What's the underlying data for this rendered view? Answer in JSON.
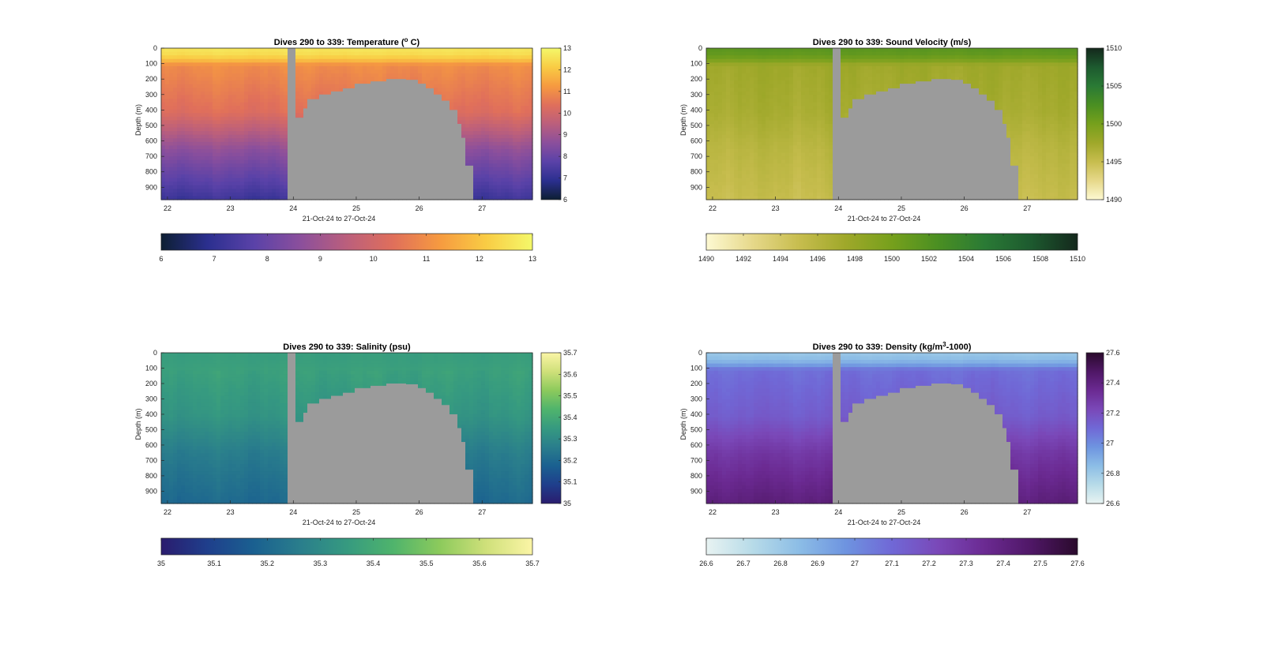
{
  "figure": {
    "xlabel": "21-Oct-24 to 27-Oct-24",
    "ylabel": "Depth (m)",
    "depth_ticks": [
      "0",
      "100",
      "200",
      "300",
      "400",
      "500",
      "600",
      "700",
      "800",
      "900"
    ],
    "day_ticks": [
      "22",
      "23",
      "24",
      "25",
      "26",
      "27"
    ],
    "no_data_color": "#9b9b9b"
  },
  "chart_data": [
    {
      "type": "heatmap",
      "title": "Dives 290 to 339: Temperature (",
      "title_sup": "o",
      "title_suffix": " C)",
      "xlabel": "21-Oct-24 to 27-Oct-24",
      "ylabel": "Depth (m)",
      "xlim": [
        21.9,
        27.8
      ],
      "ylim": [
        0,
        980
      ],
      "x_ticks": [
        22,
        23,
        24,
        25,
        26,
        27
      ],
      "y_ticks": [
        0,
        100,
        200,
        300,
        400,
        500,
        600,
        700,
        800,
        900
      ],
      "clim": [
        6,
        13
      ],
      "colorbar_ticks": [
        6,
        7,
        8,
        9,
        10,
        11,
        12,
        13
      ],
      "horizontal_colorbar_ticks": [
        6,
        7,
        8,
        9,
        10,
        11,
        12,
        13
      ],
      "colormap": [
        "#0d1f33",
        "#2b2f8f",
        "#5a42a8",
        "#8b4f9c",
        "#bb5f7c",
        "#e06f5b",
        "#f69a40",
        "#f9cc44",
        "#f4f86a"
      ],
      "profile": {
        "surface": 12.6,
        "thermocline_depth": 110,
        "upper_mixed": 11.0,
        "mid": 9.8,
        "deep": 7.2
      },
      "gap_start": 23.92,
      "gap_end": 24.05,
      "no_data_region": [
        [
          24.05,
          450
        ],
        [
          24.15,
          390
        ],
        [
          24.25,
          330
        ],
        [
          24.4,
          300
        ],
        [
          24.6,
          280
        ],
        [
          24.8,
          260
        ],
        [
          25.0,
          230
        ],
        [
          25.2,
          215
        ],
        [
          25.5,
          200
        ],
        [
          25.8,
          205
        ],
        [
          25.95,
          230
        ],
        [
          26.1,
          260
        ],
        [
          26.2,
          300
        ],
        [
          26.35,
          340
        ],
        [
          26.5,
          400
        ],
        [
          26.6,
          490
        ],
        [
          26.65,
          580
        ],
        [
          26.75,
          760
        ],
        [
          26.85,
          980
        ]
      ]
    },
    {
      "type": "heatmap",
      "title": "Dives 290 to 339: Sound Velocity (m/s)",
      "xlabel": "21-Oct-24 to 27-Oct-24",
      "ylabel": "Depth (m)",
      "xlim": [
        21.9,
        27.8
      ],
      "ylim": [
        0,
        980
      ],
      "x_ticks": [
        22,
        23,
        24,
        25,
        26,
        27
      ],
      "y_ticks": [
        0,
        100,
        200,
        300,
        400,
        500,
        600,
        700,
        800,
        900
      ],
      "clim": [
        1490,
        1510
      ],
      "colorbar_ticks": [
        1490,
        1495,
        1500,
        1505,
        1510
      ],
      "horizontal_colorbar_ticks": [
        1490,
        1492,
        1494,
        1496,
        1498,
        1500,
        1502,
        1504,
        1506,
        1508,
        1510
      ],
      "colormap": [
        "#fdf9d2",
        "#e6d88a",
        "#c7bd4e",
        "#9fa82a",
        "#76a01c",
        "#4a8f22",
        "#2a7a35",
        "#1d5a2f",
        "#14281c"
      ],
      "profile": {
        "surface": 1501.5,
        "thermocline_depth": 110,
        "upper_mixed": 1497.5,
        "mid": 1496.5,
        "deep": 1495.0
      },
      "gap_start": 23.92,
      "gap_end": 24.05,
      "no_data_region": [
        [
          24.05,
          450
        ],
        [
          24.15,
          390
        ],
        [
          24.25,
          330
        ],
        [
          24.4,
          300
        ],
        [
          24.6,
          280
        ],
        [
          24.8,
          260
        ],
        [
          25.0,
          230
        ],
        [
          25.2,
          215
        ],
        [
          25.5,
          200
        ],
        [
          25.8,
          205
        ],
        [
          25.95,
          230
        ],
        [
          26.1,
          260
        ],
        [
          26.2,
          300
        ],
        [
          26.35,
          340
        ],
        [
          26.5,
          400
        ],
        [
          26.6,
          490
        ],
        [
          26.65,
          580
        ],
        [
          26.75,
          760
        ],
        [
          26.85,
          980
        ]
      ]
    },
    {
      "type": "heatmap",
      "title": "Dives 290 to 339: Salinity (psu)",
      "xlabel": "21-Oct-24 to 27-Oct-24",
      "ylabel": "Depth (m)",
      "xlim": [
        21.9,
        27.8
      ],
      "ylim": [
        0,
        980
      ],
      "x_ticks": [
        22,
        23,
        24,
        25,
        26,
        27
      ],
      "y_ticks": [
        0,
        100,
        200,
        300,
        400,
        500,
        600,
        700,
        800,
        900
      ],
      "clim": [
        35,
        35.7
      ],
      "colorbar_ticks": [
        35,
        35.1,
        35.2,
        35.3,
        35.4,
        35.5,
        35.6,
        35.7
      ],
      "horizontal_colorbar_ticks": [
        35,
        35.1,
        35.2,
        35.3,
        35.4,
        35.5,
        35.6,
        35.7
      ],
      "colormap": [
        "#2a1c6e",
        "#1f3f8c",
        "#1a6090",
        "#2a7e8c",
        "#369a80",
        "#4fb46c",
        "#8cca5c",
        "#cfe07a",
        "#fbf5a6"
      ],
      "profile": {
        "surface": 35.36,
        "thermocline_depth": 110,
        "upper_mixed": 35.37,
        "mid": 35.3,
        "deep": 35.2
      },
      "gap_start": 23.92,
      "gap_end": 24.05,
      "no_data_region": [
        [
          24.05,
          450
        ],
        [
          24.15,
          390
        ],
        [
          24.25,
          330
        ],
        [
          24.4,
          300
        ],
        [
          24.6,
          280
        ],
        [
          24.8,
          260
        ],
        [
          25.0,
          230
        ],
        [
          25.2,
          215
        ],
        [
          25.5,
          200
        ],
        [
          25.8,
          205
        ],
        [
          25.95,
          230
        ],
        [
          26.1,
          260
        ],
        [
          26.2,
          300
        ],
        [
          26.35,
          340
        ],
        [
          26.5,
          400
        ],
        [
          26.6,
          490
        ],
        [
          26.65,
          580
        ],
        [
          26.75,
          760
        ],
        [
          26.85,
          980
        ]
      ]
    },
    {
      "type": "heatmap",
      "title": "Dives 290 to 339: Density (kg/m",
      "title_sup": "3",
      "title_suffix": "-1000)",
      "xlabel": "21-Oct-24 to 27-Oct-24",
      "ylabel": "Depth (m)",
      "xlim": [
        21.9,
        27.8
      ],
      "ylim": [
        0,
        980
      ],
      "x_ticks": [
        22,
        23,
        24,
        25,
        26,
        27
      ],
      "y_ticks": [
        0,
        100,
        200,
        300,
        400,
        500,
        600,
        700,
        800,
        900
      ],
      "clim": [
        26.6,
        27.6
      ],
      "colorbar_ticks": [
        26.6,
        26.8,
        27,
        27.2,
        27.4,
        27.6
      ],
      "horizontal_colorbar_ticks": [
        26.6,
        26.7,
        26.8,
        26.9,
        27,
        27.1,
        27.2,
        27.3,
        27.4,
        27.5,
        27.6
      ],
      "colormap": [
        "#e8f3f2",
        "#b7dbe8",
        "#8cbde6",
        "#6e94e0",
        "#7068d6",
        "#7a48b8",
        "#6b2a92",
        "#4f1766",
        "#2a0a2c"
      ],
      "profile": {
        "surface": 26.82,
        "thermocline_depth": 110,
        "upper_mixed": 27.08,
        "mid": 27.2,
        "deep": 27.42
      },
      "gap_start": 23.92,
      "gap_end": 24.05,
      "no_data_region": [
        [
          24.05,
          450
        ],
        [
          24.15,
          390
        ],
        [
          24.25,
          330
        ],
        [
          24.4,
          300
        ],
        [
          24.6,
          280
        ],
        [
          24.8,
          260
        ],
        [
          25.0,
          230
        ],
        [
          25.2,
          215
        ],
        [
          25.5,
          200
        ],
        [
          25.8,
          205
        ],
        [
          25.95,
          230
        ],
        [
          26.1,
          260
        ],
        [
          26.2,
          300
        ],
        [
          26.35,
          340
        ],
        [
          26.5,
          400
        ],
        [
          26.6,
          490
        ],
        [
          26.65,
          580
        ],
        [
          26.75,
          760
        ],
        [
          26.85,
          980
        ]
      ]
    }
  ]
}
